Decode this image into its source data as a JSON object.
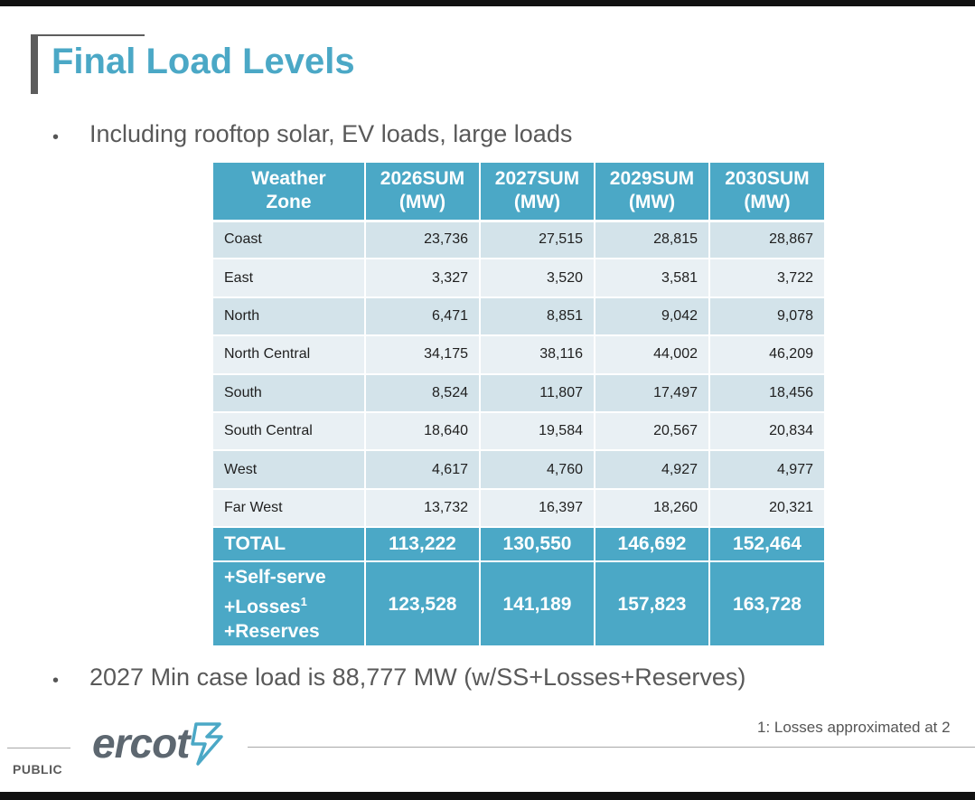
{
  "title": "Final Load Levels",
  "bullets": [
    "Including rooftop solar, EV loads, large loads",
    "2027 Min case load is 88,777 MW (w/SS+Losses+Reserves)"
  ],
  "table": {
    "headers": [
      [
        "Weather",
        "Zone"
      ],
      [
        "2026SUM",
        "(MW)"
      ],
      [
        "2027SUM",
        "(MW)"
      ],
      [
        "2029SUM",
        "(MW)"
      ],
      [
        "2030SUM",
        "(MW)"
      ]
    ],
    "rows": [
      [
        "Coast",
        "23,736",
        "27,515",
        "28,815",
        "28,867"
      ],
      [
        "East",
        "3,327",
        "3,520",
        "3,581",
        "3,722"
      ],
      [
        "North",
        "6,471",
        "8,851",
        "9,042",
        "9,078"
      ],
      [
        "North Central",
        "34,175",
        "38,116",
        "44,002",
        "46,209"
      ],
      [
        "South",
        "8,524",
        "11,807",
        "17,497",
        "18,456"
      ],
      [
        "South Central",
        "18,640",
        "19,584",
        "20,567",
        "20,834"
      ],
      [
        "West",
        "4,617",
        "4,760",
        "4,927",
        "4,977"
      ],
      [
        "Far West",
        "13,732",
        "16,397",
        "18,260",
        "20,321"
      ]
    ],
    "total": [
      "TOTAL",
      "113,222",
      "130,550",
      "146,692",
      "152,464"
    ],
    "extra": {
      "label_lines": [
        "+Self-serve",
        "+Losses",
        "+Reserves"
      ],
      "losses_sup": "1",
      "values": [
        "123,528",
        "141,189",
        "157,823",
        "163,728"
      ]
    }
  },
  "footnote": "1: Losses approximated at 2",
  "footer": {
    "label": "PUBLIC",
    "logo_text": "ercot"
  },
  "colors": {
    "accent": "#4ba8c6",
    "row_odd": "#d3e3ea",
    "row_even": "#e9f0f4",
    "logo": "#5d6770"
  }
}
